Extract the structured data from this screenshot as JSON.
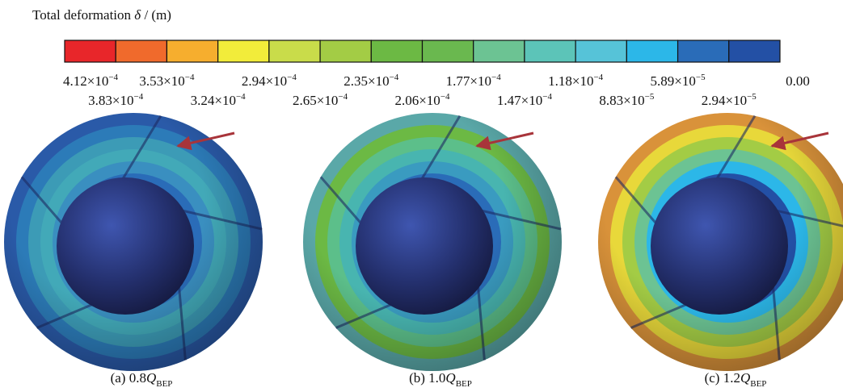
{
  "legend": {
    "title": {
      "text": "Total deformation ",
      "symbol": "δ",
      "unit": " / (m)"
    },
    "colors": [
      "#e8262a",
      "#f06a2c",
      "#f6ae2e",
      "#f2ec3a",
      "#c9dc4a",
      "#a3cc45",
      "#6cb944",
      "#6ab84f",
      "#6cc393",
      "#5cc4b8",
      "#56c3d8",
      "#2cb7e8",
      "#2a6cb8",
      "#2350a5"
    ],
    "labels": [
      {
        "m": "4.12×10",
        "e": "−4"
      },
      {
        "m": "3.83×10",
        "e": "−4"
      },
      {
        "m": "3.53×10",
        "e": "−4"
      },
      {
        "m": "3.24×10",
        "e": "−4"
      },
      {
        "m": "2.94×10",
        "e": "−4"
      },
      {
        "m": "2.65×10",
        "e": "−4"
      },
      {
        "m": "2.35×10",
        "e": "−4"
      },
      {
        "m": "2.06×10",
        "e": "−4"
      },
      {
        "m": "1.77×10",
        "e": "−4"
      },
      {
        "m": "1.47×10",
        "e": "−4"
      },
      {
        "m": "1.18×10",
        "e": "−4"
      },
      {
        "m": "8.83×10",
        "e": "−5"
      },
      {
        "m": "5.89×10",
        "e": "−5"
      },
      {
        "m": "2.94×10",
        "e": "−5"
      },
      {
        "m": "0.00"
      }
    ]
  },
  "panels": [
    {
      "prefix": "(a) 0.8",
      "q": "Q",
      "sub": "BEP"
    },
    {
      "prefix": "(b) 1.0",
      "q": "Q",
      "sub": "BEP"
    },
    {
      "prefix": "(c) 1.2",
      "q": "Q",
      "sub": "BEP"
    }
  ]
}
